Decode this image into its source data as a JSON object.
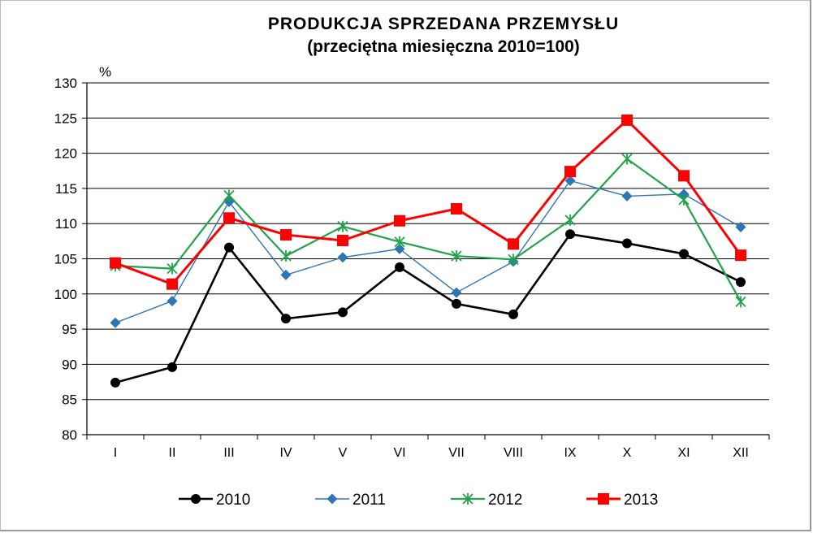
{
  "chart_data": {
    "type": "line",
    "title": "PRODUKCJA  SPRZEDANA  PRZEMYSŁU",
    "subtitle": "(przeciętna miesięczna 2010=100)",
    "y_unit_label": "%",
    "categories": [
      "I",
      "II",
      "III",
      "IV",
      "V",
      "VI",
      "VII",
      "VIII",
      "IX",
      "X",
      "XI",
      "XII"
    ],
    "ylim": [
      80,
      130
    ],
    "yticks": [
      80,
      85,
      90,
      95,
      100,
      105,
      110,
      115,
      120,
      125,
      130
    ],
    "grid": true,
    "legend_position": "bottom",
    "series": [
      {
        "name": "2010",
        "color": "#000000",
        "marker": "circle",
        "values": [
          87.4,
          89.6,
          106.6,
          96.5,
          97.4,
          103.8,
          98.6,
          97.1,
          108.5,
          107.2,
          105.7,
          101.7
        ]
      },
      {
        "name": "2011",
        "color": "#2E75B6",
        "marker": "diamond",
        "values": [
          95.9,
          99.0,
          113.1,
          102.7,
          105.2,
          106.4,
          100.2,
          104.6,
          116.1,
          113.9,
          114.2,
          109.5
        ]
      },
      {
        "name": "2012",
        "color": "#21A34A",
        "marker": "star",
        "values": [
          104.0,
          103.6,
          114.0,
          105.4,
          109.6,
          107.4,
          105.4,
          104.9,
          110.5,
          119.2,
          113.4,
          98.9
        ]
      },
      {
        "name": "2013",
        "color": "#FF0000",
        "marker": "square",
        "values": [
          104.4,
          101.4,
          110.8,
          108.4,
          107.6,
          110.4,
          112.1,
          107.1,
          117.4,
          124.7,
          116.8,
          105.5
        ]
      }
    ]
  }
}
